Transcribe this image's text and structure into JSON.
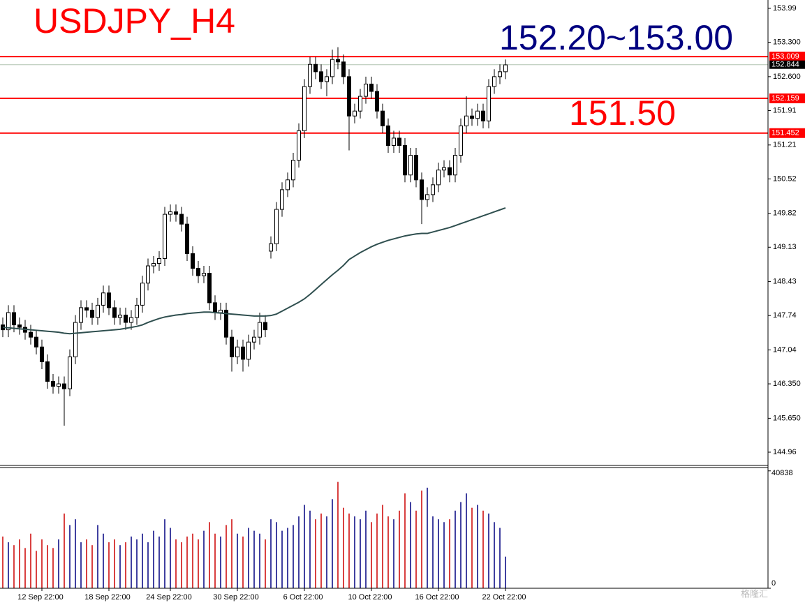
{
  "chart_data": [
    {
      "type": "candlestick",
      "title": "USDJPY_H4",
      "title_color": "#ff0000",
      "annotations": [
        {
          "text": "152.20~153.00",
          "color": "#000080"
        },
        {
          "text": "151.50",
          "color": "#ff0000"
        }
      ],
      "categories": [
        null,
        null,
        null,
        null,
        null,
        null,
        null,
        "12 Sep 22:00",
        null,
        null,
        null,
        null,
        null,
        null,
        null,
        null,
        null,
        null,
        null,
        "18 Sep 22:00",
        null,
        null,
        null,
        null,
        null,
        null,
        null,
        null,
        null,
        null,
        "24 Sep 22:00",
        null,
        null,
        null,
        null,
        null,
        null,
        null,
        null,
        null,
        null,
        null,
        "30 Sep 22:00",
        null,
        null,
        null,
        null,
        null,
        null,
        null,
        null,
        null,
        null,
        null,
        "6 Oct 22:00",
        null,
        null,
        null,
        null,
        null,
        null,
        null,
        null,
        null,
        null,
        null,
        "10 Oct 22:00",
        null,
        null,
        null,
        null,
        null,
        null,
        null,
        null,
        null,
        null,
        null,
        "16 Oct 22:00",
        null,
        null,
        null,
        null,
        null,
        null,
        null,
        null,
        null,
        null,
        null,
        "22 Oct 22:00"
      ],
      "open": [
        147.55,
        147.45,
        147.8,
        147.55,
        147.5,
        147.4,
        147.3,
        147.1,
        146.8,
        146.4,
        146.3,
        146.35,
        146.25,
        146.9,
        147.6,
        147.9,
        147.85,
        147.7,
        147.95,
        148.2,
        147.9,
        147.7,
        147.75,
        147.6,
        147.7,
        147.95,
        148.4,
        148.75,
        148.8,
        148.9,
        149.8,
        149.85,
        149.8,
        149.6,
        149.0,
        148.7,
        148.55,
        148.6,
        148.0,
        147.8,
        147.85,
        147.3,
        146.9,
        147.1,
        146.85,
        147.2,
        147.3,
        147.6,
        149.05,
        149.2,
        149.9,
        150.3,
        150.5,
        150.9,
        151.5,
        152.4,
        152.85,
        152.7,
        152.5,
        152.6,
        152.95,
        152.9,
        152.6,
        151.8,
        151.9,
        152.2,
        152.45,
        152.3,
        151.9,
        151.6,
        151.2,
        151.35,
        151.2,
        150.6,
        151.0,
        150.5,
        150.1,
        150.2,
        150.4,
        150.7,
        150.75,
        150.6,
        151.0,
        151.6,
        151.8,
        151.75,
        151.9,
        151.7,
        152.4,
        152.6,
        152.7
      ],
      "high": [
        147.7,
        147.95,
        147.95,
        147.7,
        147.65,
        147.55,
        147.45,
        147.25,
        146.95,
        146.55,
        146.5,
        146.5,
        147.05,
        147.75,
        148.05,
        148.05,
        148.0,
        148.1,
        148.35,
        148.35,
        148.05,
        147.9,
        147.9,
        147.85,
        148.1,
        148.55,
        148.9,
        148.95,
        149.05,
        149.95,
        150.0,
        150.0,
        149.95,
        149.75,
        149.15,
        148.85,
        148.75,
        148.75,
        148.15,
        148.0,
        148.0,
        147.45,
        147.25,
        147.25,
        147.35,
        147.45,
        147.8,
        147.75,
        149.35,
        150.05,
        150.45,
        150.65,
        151.05,
        151.65,
        152.55,
        153.0,
        153.0,
        152.85,
        152.75,
        153.15,
        153.2,
        153.05,
        152.75,
        152.05,
        152.35,
        152.6,
        152.6,
        152.45,
        152.05,
        151.75,
        151.5,
        151.5,
        151.35,
        151.15,
        151.15,
        150.65,
        150.35,
        150.55,
        150.85,
        150.9,
        150.9,
        151.15,
        151.75,
        152.2,
        151.95,
        152.05,
        152.05,
        152.55,
        152.75,
        152.85,
        152.95
      ],
      "low": [
        147.3,
        147.3,
        147.4,
        147.35,
        147.25,
        147.15,
        146.95,
        146.65,
        146.25,
        146.15,
        146.15,
        145.5,
        146.1,
        146.75,
        147.45,
        147.7,
        147.55,
        147.55,
        147.8,
        147.75,
        147.55,
        147.55,
        147.45,
        147.45,
        147.55,
        147.8,
        148.25,
        148.6,
        148.65,
        148.75,
        149.65,
        149.65,
        149.45,
        148.85,
        148.55,
        148.4,
        148.4,
        147.85,
        147.65,
        147.65,
        147.15,
        146.6,
        146.75,
        146.6,
        146.7,
        147.05,
        147.15,
        147.3,
        148.9,
        149.05,
        149.75,
        150.15,
        150.35,
        150.75,
        151.35,
        152.25,
        152.55,
        152.35,
        152.2,
        152.45,
        152.75,
        152.45,
        151.1,
        151.65,
        151.75,
        152.05,
        152.15,
        151.75,
        151.45,
        151.05,
        151.05,
        151.05,
        150.45,
        150.45,
        150.35,
        149.6,
        149.95,
        150.05,
        150.25,
        150.55,
        150.45,
        150.45,
        150.85,
        151.45,
        151.6,
        151.6,
        151.55,
        151.55,
        152.25,
        152.45,
        152.55
      ],
      "close": [
        147.45,
        147.8,
        147.55,
        147.5,
        147.4,
        147.3,
        147.1,
        146.8,
        146.4,
        146.3,
        146.35,
        146.25,
        146.9,
        147.6,
        147.9,
        147.85,
        147.7,
        147.95,
        148.2,
        147.9,
        147.7,
        147.75,
        147.6,
        147.7,
        147.95,
        148.4,
        148.75,
        148.8,
        148.9,
        149.8,
        149.85,
        149.8,
        149.6,
        149.0,
        148.7,
        148.55,
        148.6,
        148.0,
        147.8,
        147.85,
        147.3,
        146.9,
        147.1,
        146.85,
        147.2,
        147.3,
        147.6,
        147.45,
        149.2,
        149.9,
        150.3,
        150.5,
        150.9,
        151.5,
        152.4,
        152.85,
        152.7,
        152.5,
        152.6,
        152.95,
        152.9,
        152.6,
        151.8,
        151.9,
        152.2,
        152.45,
        152.3,
        151.9,
        151.6,
        151.2,
        151.35,
        151.2,
        150.6,
        151.0,
        150.5,
        150.1,
        150.2,
        150.4,
        150.7,
        150.75,
        150.6,
        151.0,
        151.6,
        151.8,
        151.75,
        151.9,
        151.7,
        152.4,
        152.6,
        152.7,
        152.84
      ],
      "up_color": "#ffffff",
      "down_color": "#000000",
      "ma": {
        "color": "#2f4f4f",
        "values": [
          147.5,
          147.49,
          147.48,
          147.47,
          147.46,
          147.45,
          147.44,
          147.43,
          147.42,
          147.41,
          147.4,
          147.38,
          147.37,
          147.38,
          147.39,
          147.4,
          147.41,
          147.42,
          147.43,
          147.44,
          147.45,
          147.46,
          147.48,
          147.5,
          147.52,
          147.55,
          147.6,
          147.64,
          147.68,
          147.71,
          147.73,
          147.75,
          147.76,
          147.78,
          147.79,
          147.8,
          147.81,
          147.81,
          147.8,
          147.79,
          147.78,
          147.77,
          147.76,
          147.75,
          147.74,
          147.73,
          147.73,
          147.73,
          147.74,
          147.77,
          147.83,
          147.89,
          147.95,
          148.01,
          148.08,
          148.17,
          148.27,
          148.37,
          148.47,
          148.57,
          148.66,
          148.76,
          148.88,
          148.95,
          149.02,
          149.08,
          149.14,
          149.19,
          149.23,
          149.27,
          149.3,
          149.33,
          149.36,
          149.38,
          149.4,
          149.41,
          149.41,
          149.44,
          149.47,
          149.5,
          149.53,
          149.57,
          149.61,
          149.65,
          149.69,
          149.73,
          149.77,
          149.81,
          149.85,
          149.89,
          149.93
        ]
      },
      "levels": [
        {
          "value": 153.009,
          "color": "#ff0000"
        },
        {
          "value": 152.159,
          "color": "#ff0000"
        },
        {
          "value": 151.452,
          "color": "#ff0000"
        }
      ],
      "last": 152.844,
      "ylim": [
        144.69,
        154.16
      ],
      "yticks": [
        153.99,
        {
          "value": 153.3,
          "label": "153.300"
        },
        {
          "value": 152.6,
          "label": "152.600"
        },
        151.91,
        151.21,
        150.52,
        149.82,
        149.13,
        148.43,
        147.74,
        147.04,
        {
          "value": 146.35,
          "label": "146.350"
        },
        {
          "value": 145.65,
          "label": "145.650"
        },
        144.96
      ]
    },
    {
      "type": "bar",
      "up_color": "#000080",
      "down_color": "#cc0000",
      "values": [
        18000,
        16000,
        15000,
        17000,
        14000,
        19000,
        13000,
        17000,
        15000,
        14000,
        17000,
        26000,
        22000,
        24000,
        16000,
        17000,
        15000,
        22000,
        19000,
        16000,
        17000,
        15000,
        16000,
        18000,
        17000,
        19000,
        16000,
        20000,
        18000,
        24000,
        21000,
        17000,
        16000,
        18000,
        19000,
        17000,
        20000,
        23000,
        19000,
        18000,
        22000,
        24000,
        19000,
        18000,
        21000,
        20000,
        19000,
        17000,
        24000,
        23000,
        20000,
        21000,
        22000,
        25000,
        29000,
        27000,
        24000,
        26000,
        25000,
        31000,
        37000,
        28000,
        26000,
        25000,
        24000,
        27000,
        23000,
        26000,
        29000,
        25000,
        24000,
        27000,
        33000,
        30000,
        27000,
        34000,
        35000,
        25000,
        24000,
        23000,
        24000,
        27000,
        30000,
        33000,
        28000,
        29000,
        27000,
        26000,
        23000,
        21000,
        11000
      ],
      "ylim": [
        0,
        42000
      ],
      "yticks": [
        0,
        40838
      ]
    }
  ],
  "watermark": "格隆汇"
}
